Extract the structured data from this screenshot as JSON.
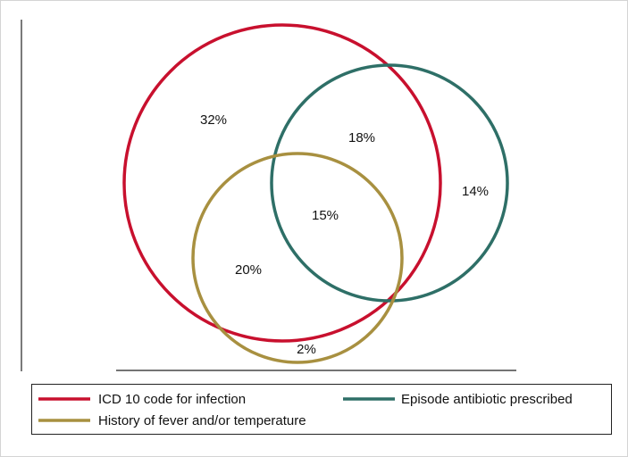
{
  "chart_data": {
    "type": "venn",
    "sets": [
      {
        "id": "icd",
        "name": "ICD 10 code for infection",
        "color": "#c8102e"
      },
      {
        "id": "abx",
        "name": "Episode antibiotic prescribed",
        "color": "#2e6f67"
      },
      {
        "id": "fever",
        "name": "History of fever and/or temperature",
        "color": "#a89040"
      }
    ],
    "regions": [
      {
        "sets": [
          "icd"
        ],
        "value": 32,
        "label": "32%"
      },
      {
        "sets": [
          "icd",
          "abx"
        ],
        "value": 18,
        "label": "18%"
      },
      {
        "sets": [
          "abx"
        ],
        "value": 14,
        "label": "14%"
      },
      {
        "sets": [
          "icd",
          "abx",
          "fever"
        ],
        "value": 15,
        "label": "15%"
      },
      {
        "sets": [
          "icd",
          "fever"
        ],
        "value": 20,
        "label": "20%"
      },
      {
        "sets": [
          "fever"
        ],
        "value": 2,
        "label": "2%"
      }
    ],
    "legend_position": "bottom"
  }
}
